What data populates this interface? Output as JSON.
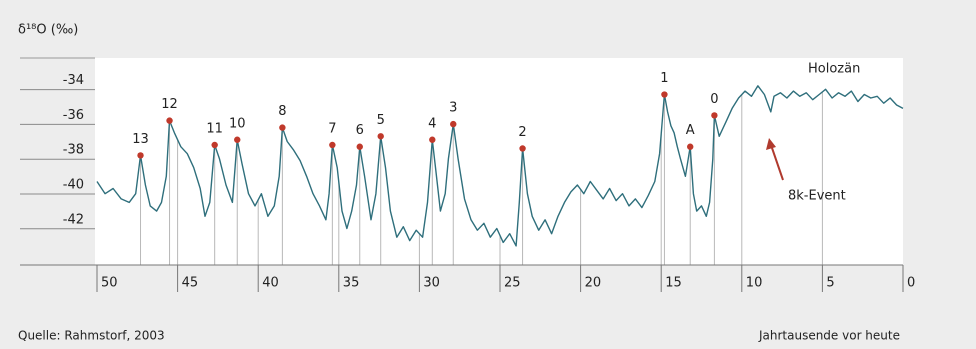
{
  "chart_data": {
    "type": "line",
    "y_label": "δ¹⁸O (‰)",
    "x_label": "Jahrtausende vor heute",
    "source": "Quelle: Rahmstorf, 2003",
    "annotations": [
      "Holozän",
      "8k-Event"
    ],
    "xlim": [
      50,
      0
    ],
    "xticks": [
      50,
      45,
      40,
      35,
      30,
      25,
      20,
      15,
      10,
      5,
      0
    ],
    "ylim": [
      -44.6,
      -32.7
    ],
    "yticks": [
      -34,
      -36,
      -38,
      -40,
      -42
    ],
    "grid": true,
    "series": [
      {
        "color": "#2f6f7c",
        "x": [
          50,
          49.5,
          49,
          48.5,
          48,
          47.6,
          47.3,
          47.0,
          46.7,
          46.3,
          46.0,
          45.7,
          45.5,
          45.2,
          44.8,
          44.4,
          44.0,
          43.6,
          43.3,
          43.0,
          42.7,
          42.4,
          42.0,
          41.6,
          41.3,
          41.0,
          40.6,
          40.2,
          39.8,
          39.4,
          39.0,
          38.7,
          38.5,
          38.2,
          37.8,
          37.4,
          37.0,
          36.6,
          36.2,
          35.8,
          35.6,
          35.4,
          35.1,
          34.8,
          34.5,
          34.2,
          33.9,
          33.7,
          33.4,
          33.0,
          32.7,
          32.4,
          32.1,
          31.8,
          31.4,
          31.0,
          30.6,
          30.2,
          29.8,
          29.5,
          29.2,
          29.0,
          28.7,
          28.4,
          28.2,
          27.9,
          27.6,
          27.2,
          26.8,
          26.4,
          26.0,
          25.6,
          25.2,
          24.8,
          24.4,
          24.0,
          23.8,
          23.6,
          23.3,
          23.0,
          22.6,
          22.2,
          21.8,
          21.4,
          21.0,
          20.6,
          20.2,
          19.8,
          19.4,
          19.0,
          18.6,
          18.2,
          17.8,
          17.4,
          17.0,
          16.6,
          16.2,
          15.8,
          15.4,
          15.1,
          14.8,
          14.6,
          14.4,
          14.2,
          14.0,
          13.8,
          13.5,
          13.2,
          13.0,
          12.8,
          12.5,
          12.2,
          12.0,
          11.8,
          11.7,
          11.4,
          11.0,
          10.6,
          10.2,
          9.8,
          9.4,
          9.0,
          8.6,
          8.2,
          8.0,
          7.6,
          7.2,
          6.8,
          6.4,
          6.0,
          5.6,
          5.2,
          4.8,
          4.4,
          4.0,
          3.6,
          3.2,
          2.8,
          2.4,
          2.0,
          1.6,
          1.2,
          0.8,
          0.4,
          0.0
        ],
        "values": [
          -39.8,
          -40.5,
          -40.2,
          -40.8,
          -41.0,
          -40.5,
          -38.3,
          -40.0,
          -41.2,
          -41.5,
          -41.0,
          -39.5,
          -36.3,
          -37.0,
          -37.8,
          -38.2,
          -39.0,
          -40.2,
          -41.8,
          -41.0,
          -37.7,
          -38.5,
          -40.0,
          -41.0,
          -37.4,
          -38.8,
          -40.5,
          -41.2,
          -40.5,
          -41.8,
          -41.2,
          -39.5,
          -36.7,
          -37.5,
          -38.0,
          -38.6,
          -39.5,
          -40.5,
          -41.2,
          -42.0,
          -40.5,
          -37.7,
          -39.0,
          -41.5,
          -42.5,
          -41.5,
          -40.0,
          -37.8,
          -39.5,
          -42.0,
          -40.5,
          -37.2,
          -39.0,
          -41.5,
          -43.0,
          -42.4,
          -43.2,
          -42.6,
          -43.0,
          -41.0,
          -37.4,
          -39.0,
          -41.5,
          -40.5,
          -38.5,
          -36.5,
          -38.5,
          -40.8,
          -42.0,
          -42.6,
          -42.2,
          -43.0,
          -42.5,
          -43.3,
          -42.8,
          -43.5,
          -41.0,
          -37.9,
          -40.5,
          -41.8,
          -42.6,
          -42.0,
          -42.8,
          -41.8,
          -41.0,
          -40.4,
          -40.0,
          -40.5,
          -39.8,
          -40.3,
          -40.8,
          -40.2,
          -40.9,
          -40.5,
          -41.2,
          -40.8,
          -41.3,
          -40.6,
          -39.8,
          -38.2,
          -34.8,
          -35.8,
          -36.6,
          -37.0,
          -37.8,
          -38.5,
          -39.5,
          -37.8,
          -40.5,
          -41.5,
          -41.2,
          -41.8,
          -41.0,
          -38.5,
          -36.0,
          -37.2,
          -36.4,
          -35.6,
          -35.0,
          -34.6,
          -34.9,
          -34.3,
          -34.8,
          -35.8,
          -34.9,
          -34.7,
          -35.0,
          -34.6,
          -34.9,
          -34.7,
          -35.1,
          -34.8,
          -34.5,
          -35.0,
          -34.7,
          -34.9,
          -34.6,
          -35.2,
          -34.8,
          -35.0,
          -34.9,
          -35.3,
          -35.0,
          -35.4,
          -35.6
        ]
      }
    ],
    "events": [
      {
        "label": "13",
        "x": 47.3,
        "y": -38.3
      },
      {
        "label": "12",
        "x": 45.5,
        "y": -36.3
      },
      {
        "label": "11",
        "x": 42.7,
        "y": -37.7
      },
      {
        "label": "10",
        "x": 41.3,
        "y": -37.4
      },
      {
        "label": "8",
        "x": 38.5,
        "y": -36.7
      },
      {
        "label": "7",
        "x": 35.4,
        "y": -37.7
      },
      {
        "label": "6",
        "x": 33.7,
        "y": -37.8
      },
      {
        "label": "5",
        "x": 32.4,
        "y": -37.2
      },
      {
        "label": "4",
        "x": 29.2,
        "y": -37.4
      },
      {
        "label": "3",
        "x": 27.9,
        "y": -36.5
      },
      {
        "label": "2",
        "x": 23.6,
        "y": -37.9
      },
      {
        "label": "1",
        "x": 14.8,
        "y": -34.8
      },
      {
        "label": "A",
        "x": 13.2,
        "y": -37.8
      },
      {
        "label": "0",
        "x": 11.7,
        "y": -36.0
      }
    ],
    "event_color": "#c0392b"
  }
}
